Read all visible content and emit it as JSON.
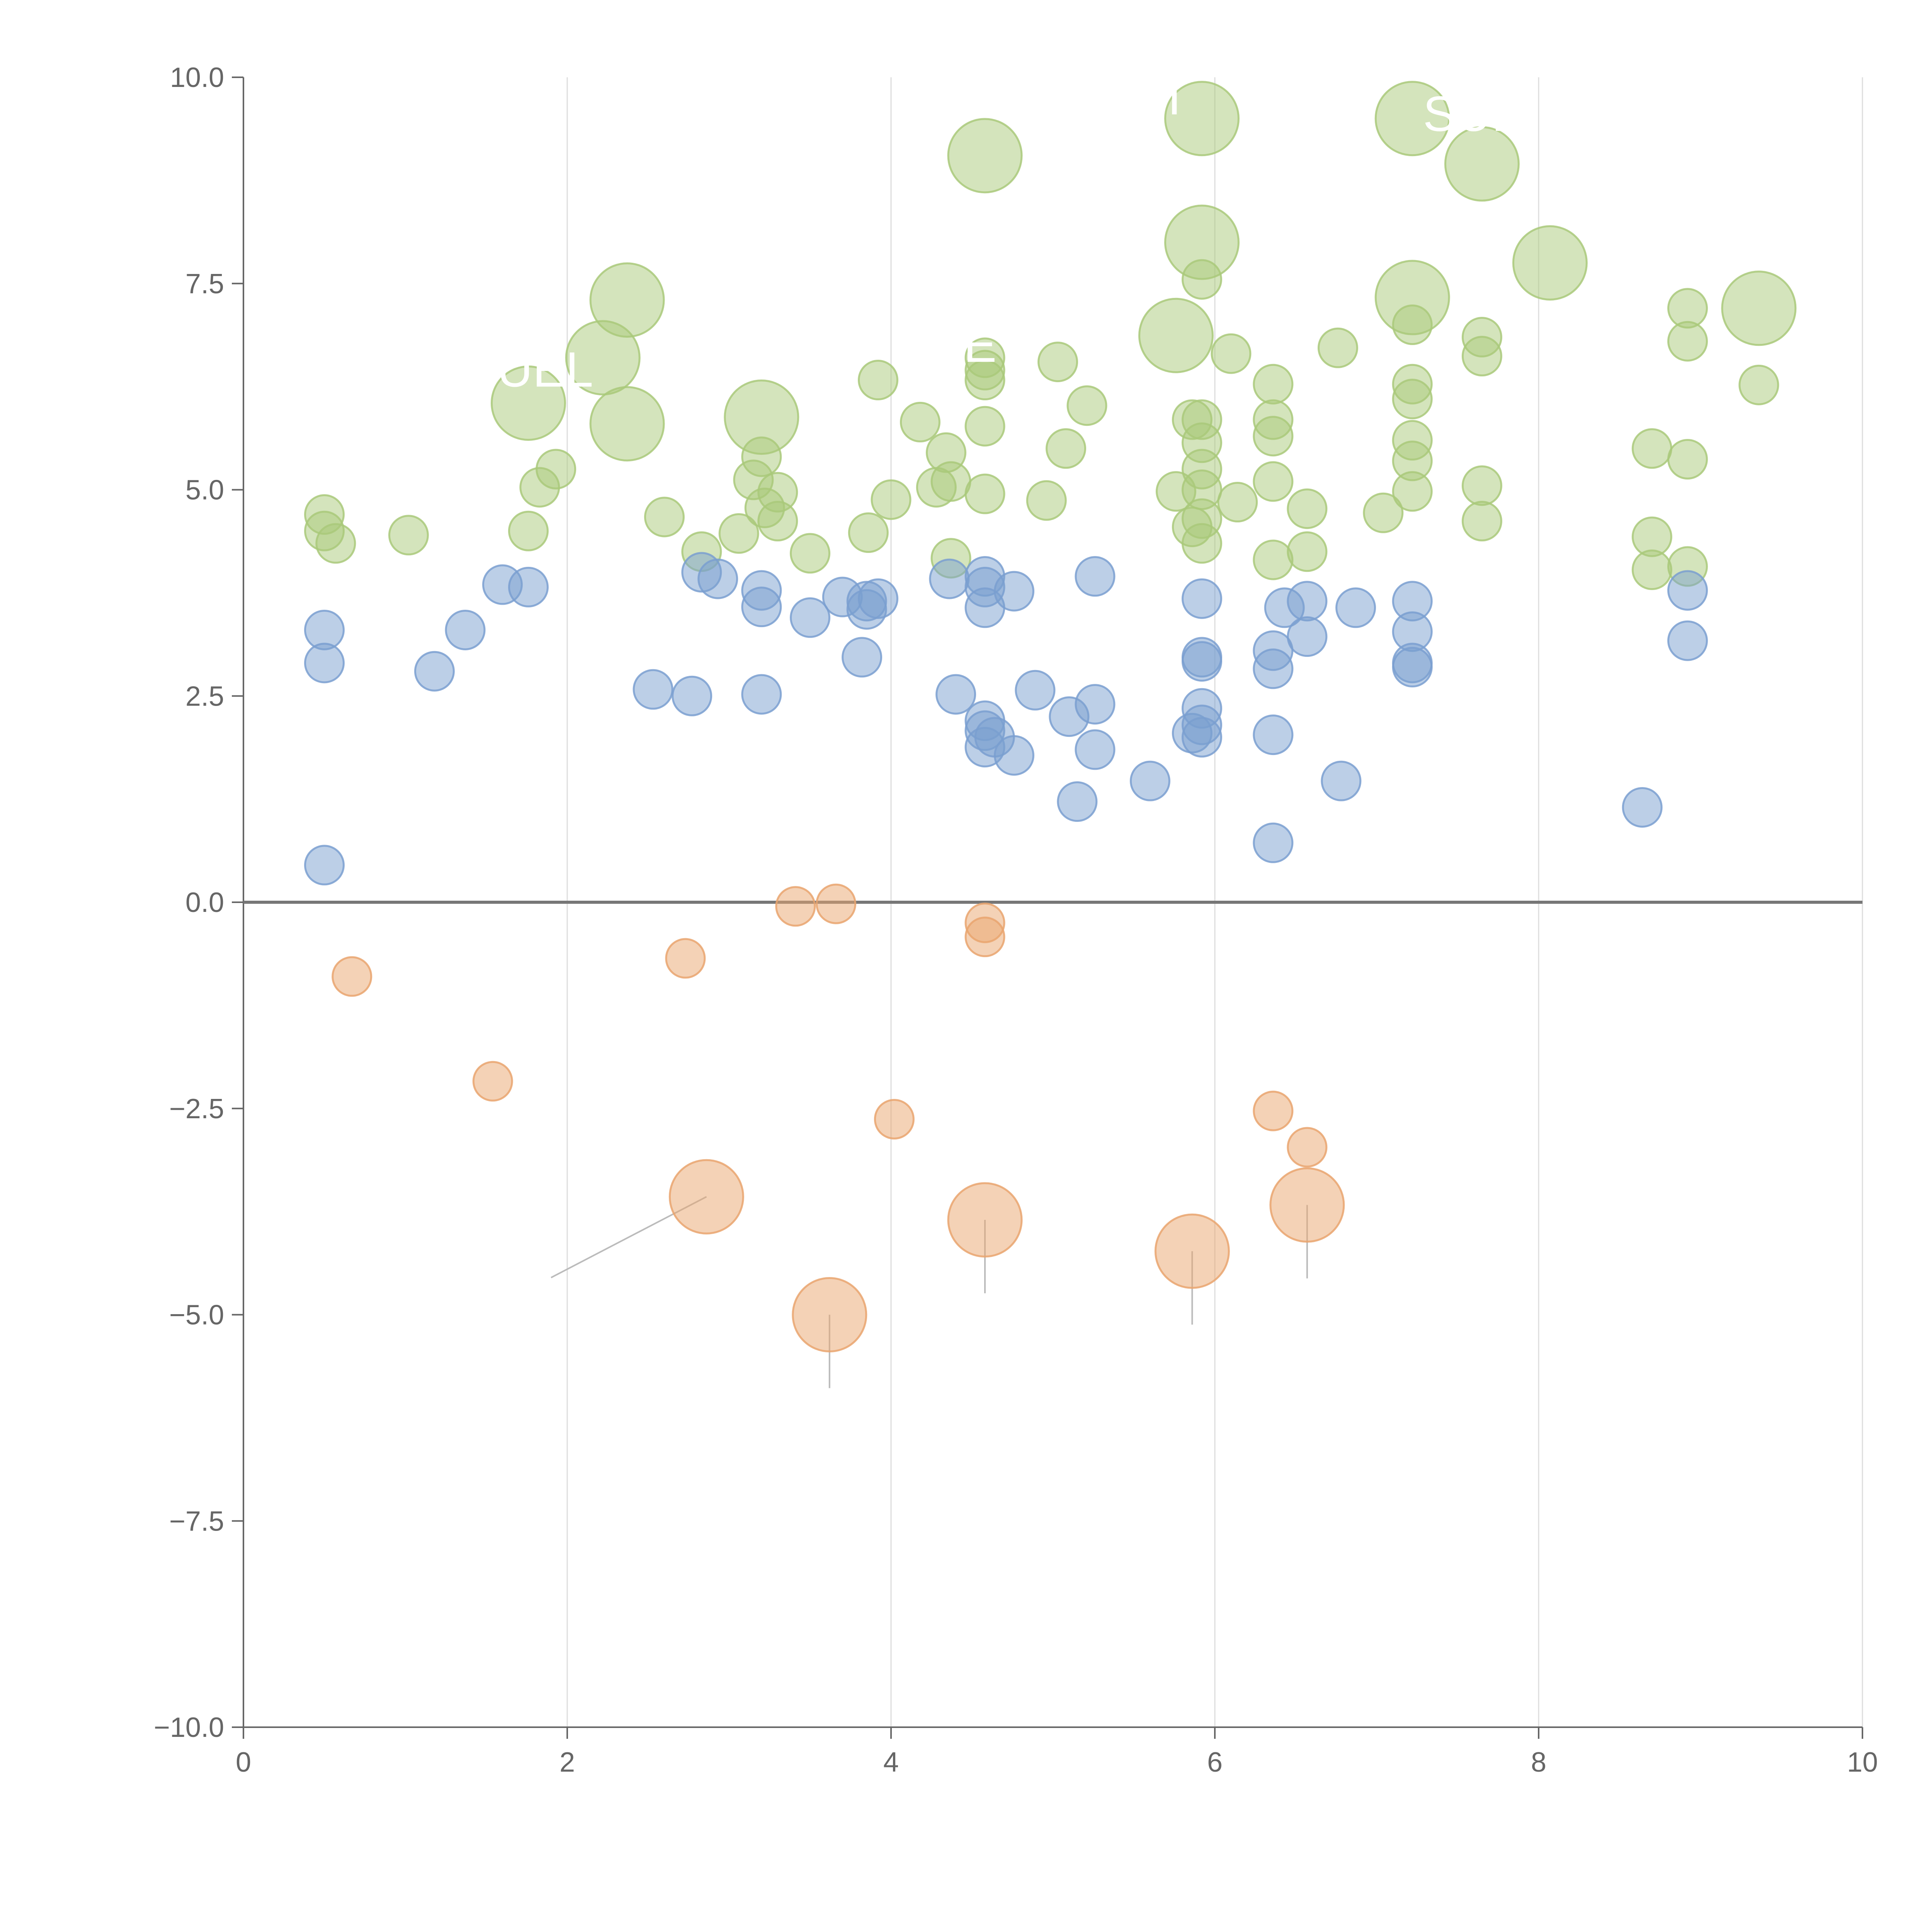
{
  "chart_data": {
    "type": "scatter",
    "title": "",
    "xlabel": "",
    "ylabel": "",
    "xlim": [
      0,
      10
    ],
    "ylim": [
      -10,
      10
    ],
    "x_ticks": [
      0,
      2,
      4,
      6,
      8,
      10
    ],
    "y_ticks": [
      -10,
      -7.5,
      -5,
      -2.5,
      0,
      2.5,
      5,
      7.5,
      10
    ],
    "x_tick_labels": [
      "0",
      "2",
      "4",
      "6",
      "8",
      "10"
    ],
    "y_tick_labels": [
      "−10.0",
      "−7.5",
      "−5.0",
      "−2.5",
      "0.0",
      "2.5",
      "5.0",
      "7.5",
      "10.0"
    ],
    "grid": {
      "vertical": true,
      "horizontal": false
    },
    "reference_line_y": 0,
    "colors": {
      "green": "#a9c97a",
      "blue": "#7a9fd0",
      "orange": "#e9a56e",
      "axis": "#666666",
      "grid": "#dddddd",
      "zero_line": "#777777",
      "leader": "#bbbbbb"
    },
    "series": [
      {
        "name": "green",
        "color": "#a9c97a",
        "points": [
          {
            "x": 0.5,
            "y": 4.7,
            "r": 1
          },
          {
            "x": 0.5,
            "y": 4.5,
            "r": 1
          },
          {
            "x": 0.57,
            "y": 4.35,
            "r": 1
          },
          {
            "x": 1.02,
            "y": 4.45,
            "r": 1
          },
          {
            "x": 1.76,
            "y": 4.5,
            "r": 1
          },
          {
            "x": 1.83,
            "y": 5.03,
            "r": 1
          },
          {
            "x": 1.93,
            "y": 5.25,
            "r": 1
          },
          {
            "x": 2.6,
            "y": 4.67,
            "r": 1
          },
          {
            "x": 2.83,
            "y": 4.25,
            "r": 1
          },
          {
            "x": 3.06,
            "y": 4.47,
            "r": 1
          },
          {
            "x": 3.15,
            "y": 5.12,
            "r": 1
          },
          {
            "x": 3.2,
            "y": 5.4,
            "r": 1
          },
          {
            "x": 3.22,
            "y": 4.78,
            "r": 1
          },
          {
            "x": 3.3,
            "y": 4.97,
            "r": 1
          },
          {
            "x": 3.3,
            "y": 4.62,
            "r": 1
          },
          {
            "x": 3.5,
            "y": 4.23,
            "r": 1
          },
          {
            "x": 3.86,
            "y": 4.48,
            "r": 1
          },
          {
            "x": 3.92,
            "y": 6.33,
            "r": 1
          },
          {
            "x": 4.0,
            "y": 4.88,
            "r": 1
          },
          {
            "x": 4.18,
            "y": 5.82,
            "r": 1
          },
          {
            "x": 4.28,
            "y": 5.03,
            "r": 1
          },
          {
            "x": 4.34,
            "y": 5.45,
            "r": 1
          },
          {
            "x": 4.37,
            "y": 4.17,
            "r": 1
          },
          {
            "x": 4.37,
            "y": 5.1,
            "r": 1
          },
          {
            "x": 4.58,
            "y": 6.6,
            "r": 1
          },
          {
            "x": 4.58,
            "y": 6.45,
            "r": 1
          },
          {
            "x": 4.58,
            "y": 6.33,
            "r": 1
          },
          {
            "x": 4.58,
            "y": 5.77,
            "r": 1
          },
          {
            "x": 4.58,
            "y": 4.95,
            "r": 1
          },
          {
            "x": 4.96,
            "y": 4.87,
            "r": 1
          },
          {
            "x": 5.03,
            "y": 6.55,
            "r": 1
          },
          {
            "x": 5.08,
            "y": 5.5,
            "r": 1
          },
          {
            "x": 5.21,
            "y": 6.02,
            "r": 1
          },
          {
            "x": 5.76,
            "y": 4.98,
            "r": 1
          },
          {
            "x": 5.86,
            "y": 5.85,
            "r": 1
          },
          {
            "x": 5.86,
            "y": 4.55,
            "r": 1
          },
          {
            "x": 5.92,
            "y": 7.55,
            "r": 1
          },
          {
            "x": 5.92,
            "y": 5.85,
            "r": 1
          },
          {
            "x": 5.92,
            "y": 5.57,
            "r": 1
          },
          {
            "x": 5.92,
            "y": 5.25,
            "r": 1
          },
          {
            "x": 5.92,
            "y": 5.0,
            "r": 1
          },
          {
            "x": 5.92,
            "y": 4.65,
            "r": 1
          },
          {
            "x": 5.92,
            "y": 4.35,
            "r": 1
          },
          {
            "x": 6.1,
            "y": 6.65,
            "r": 1
          },
          {
            "x": 6.14,
            "y": 4.85,
            "r": 1
          },
          {
            "x": 6.36,
            "y": 6.28,
            "r": 1
          },
          {
            "x": 6.36,
            "y": 5.85,
            "r": 1
          },
          {
            "x": 6.36,
            "y": 5.65,
            "r": 1
          },
          {
            "x": 6.36,
            "y": 5.1,
            "r": 1
          },
          {
            "x": 6.36,
            "y": 4.15,
            "r": 1
          },
          {
            "x": 6.57,
            "y": 4.77,
            "r": 1
          },
          {
            "x": 6.57,
            "y": 4.25,
            "r": 1
          },
          {
            "x": 6.76,
            "y": 6.72,
            "r": 1
          },
          {
            "x": 7.04,
            "y": 4.72,
            "r": 1
          },
          {
            "x": 7.22,
            "y": 7.0,
            "r": 1
          },
          {
            "x": 7.22,
            "y": 6.28,
            "r": 1
          },
          {
            "x": 7.22,
            "y": 6.1,
            "r": 1
          },
          {
            "x": 7.22,
            "y": 5.6,
            "r": 1
          },
          {
            "x": 7.22,
            "y": 5.35,
            "r": 1
          },
          {
            "x": 7.22,
            "y": 4.98,
            "r": 1
          },
          {
            "x": 7.65,
            "y": 6.85,
            "r": 1
          },
          {
            "x": 7.65,
            "y": 6.62,
            "r": 1
          },
          {
            "x": 7.65,
            "y": 5.05,
            "r": 1
          },
          {
            "x": 7.65,
            "y": 4.62,
            "r": 1
          },
          {
            "x": 8.7,
            "y": 5.5,
            "r": 1
          },
          {
            "x": 8.7,
            "y": 4.43,
            "r": 1
          },
          {
            "x": 8.7,
            "y": 4.03,
            "r": 1
          },
          {
            "x": 8.92,
            "y": 7.2,
            "r": 1
          },
          {
            "x": 8.92,
            "y": 6.8,
            "r": 1
          },
          {
            "x": 8.92,
            "y": 5.37,
            "r": 1
          },
          {
            "x": 8.92,
            "y": 4.07,
            "r": 1
          },
          {
            "x": 9.36,
            "y": 6.27,
            "r": 1
          },
          {
            "x": 1.76,
            "y": 6.05,
            "r": 2
          },
          {
            "x": 2.22,
            "y": 6.6,
            "r": 2
          },
          {
            "x": 2.37,
            "y": 7.3,
            "r": 2
          },
          {
            "x": 2.37,
            "y": 5.8,
            "r": 2
          },
          {
            "x": 3.2,
            "y": 5.88,
            "r": 2
          },
          {
            "x": 4.58,
            "y": 9.05,
            "r": 2
          },
          {
            "x": 5.76,
            "y": 6.87,
            "r": 2
          },
          {
            "x": 5.92,
            "y": 9.5,
            "r": 2
          },
          {
            "x": 5.92,
            "y": 8.0,
            "r": 2
          },
          {
            "x": 7.22,
            "y": 9.5,
            "r": 2
          },
          {
            "x": 7.22,
            "y": 7.33,
            "r": 2
          },
          {
            "x": 7.65,
            "y": 8.95,
            "r": 2
          },
          {
            "x": 8.07,
            "y": 7.75,
            "r": 2
          },
          {
            "x": 9.36,
            "y": 7.2,
            "r": 2
          }
        ]
      },
      {
        "name": "blue",
        "color": "#7a9fd0",
        "points": [
          {
            "x": 0.5,
            "y": 3.3
          },
          {
            "x": 0.5,
            "y": 2.9
          },
          {
            "x": 0.5,
            "y": 0.45
          },
          {
            "x": 1.18,
            "y": 2.8
          },
          {
            "x": 1.37,
            "y": 3.3
          },
          {
            "x": 1.6,
            "y": 3.85
          },
          {
            "x": 1.76,
            "y": 3.82
          },
          {
            "x": 2.53,
            "y": 2.58
          },
          {
            "x": 2.77,
            "y": 2.5
          },
          {
            "x": 2.83,
            "y": 4.0
          },
          {
            "x": 2.93,
            "y": 3.92
          },
          {
            "x": 3.2,
            "y": 3.78
          },
          {
            "x": 3.2,
            "y": 3.58
          },
          {
            "x": 3.2,
            "y": 2.52
          },
          {
            "x": 3.5,
            "y": 3.45
          },
          {
            "x": 3.7,
            "y": 3.7
          },
          {
            "x": 3.82,
            "y": 2.97
          },
          {
            "x": 3.85,
            "y": 3.65
          },
          {
            "x": 3.85,
            "y": 3.55
          },
          {
            "x": 3.92,
            "y": 3.68
          },
          {
            "x": 4.36,
            "y": 3.92
          },
          {
            "x": 4.4,
            "y": 2.52
          },
          {
            "x": 4.58,
            "y": 3.95
          },
          {
            "x": 4.58,
            "y": 3.82
          },
          {
            "x": 4.58,
            "y": 3.57
          },
          {
            "x": 4.58,
            "y": 2.2
          },
          {
            "x": 4.58,
            "y": 2.08
          },
          {
            "x": 4.58,
            "y": 1.88
          },
          {
            "x": 4.64,
            "y": 2.0
          },
          {
            "x": 4.76,
            "y": 3.77
          },
          {
            "x": 4.76,
            "y": 1.78
          },
          {
            "x": 4.89,
            "y": 2.57
          },
          {
            "x": 5.1,
            "y": 2.25
          },
          {
            "x": 5.15,
            "y": 1.22
          },
          {
            "x": 5.26,
            "y": 3.95
          },
          {
            "x": 5.26,
            "y": 2.4
          },
          {
            "x": 5.26,
            "y": 1.85
          },
          {
            "x": 5.6,
            "y": 1.47
          },
          {
            "x": 5.86,
            "y": 2.05
          },
          {
            "x": 5.92,
            "y": 3.68
          },
          {
            "x": 5.92,
            "y": 2.97
          },
          {
            "x": 5.92,
            "y": 2.92
          },
          {
            "x": 5.92,
            "y": 2.35
          },
          {
            "x": 5.92,
            "y": 2.15
          },
          {
            "x": 5.92,
            "y": 2.0
          },
          {
            "x": 6.36,
            "y": 3.05
          },
          {
            "x": 6.36,
            "y": 2.83
          },
          {
            "x": 6.36,
            "y": 2.03
          },
          {
            "x": 6.36,
            "y": 0.72
          },
          {
            "x": 6.43,
            "y": 3.57
          },
          {
            "x": 6.57,
            "y": 3.65
          },
          {
            "x": 6.57,
            "y": 3.22
          },
          {
            "x": 6.78,
            "y": 1.47
          },
          {
            "x": 6.87,
            "y": 3.57
          },
          {
            "x": 7.22,
            "y": 3.65
          },
          {
            "x": 7.22,
            "y": 3.28
          },
          {
            "x": 7.22,
            "y": 2.9
          },
          {
            "x": 7.22,
            "y": 2.85
          },
          {
            "x": 8.64,
            "y": 1.15
          },
          {
            "x": 8.92,
            "y": 3.78
          },
          {
            "x": 8.92,
            "y": 3.17
          }
        ]
      },
      {
        "name": "orange",
        "color": "#e9a56e",
        "points": [
          {
            "x": 0.67,
            "y": -0.9,
            "r": 1
          },
          {
            "x": 1.54,
            "y": -2.17,
            "r": 1
          },
          {
            "x": 2.73,
            "y": -0.68,
            "r": 1
          },
          {
            "x": 3.41,
            "y": -0.05,
            "r": 1
          },
          {
            "x": 3.66,
            "y": -0.02,
            "r": 1
          },
          {
            "x": 4.02,
            "y": -2.63,
            "r": 1
          },
          {
            "x": 4.58,
            "y": -0.25,
            "r": 1
          },
          {
            "x": 4.58,
            "y": -0.42,
            "r": 1
          },
          {
            "x": 6.36,
            "y": -2.53,
            "r": 1
          },
          {
            "x": 6.57,
            "y": -2.97,
            "r": 1
          },
          {
            "x": 2.86,
            "y": -3.57,
            "r": 2
          },
          {
            "x": 3.62,
            "y": -5.0,
            "r": 2
          },
          {
            "x": 4.58,
            "y": -3.85,
            "r": 2
          },
          {
            "x": 5.86,
            "y": -4.23,
            "r": 2
          },
          {
            "x": 6.57,
            "y": -3.67,
            "r": 2
          }
        ]
      }
    ],
    "annotations": [
      {
        "text": "FUEL",
        "x": 1.77,
        "y": 6.25
      },
      {
        "text": "SUP",
        "x": 7.6,
        "y": 9.35
      },
      {
        "text": "E",
        "x": 4.55,
        "y": 6.55
      },
      {
        "text": "I",
        "x": 5.75,
        "y": 9.55
      }
    ]
  }
}
